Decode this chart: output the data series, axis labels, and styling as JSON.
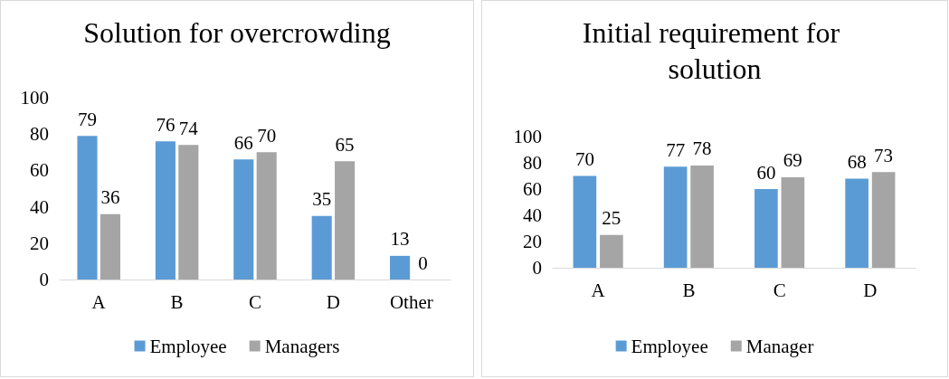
{
  "chart_data": [
    {
      "type": "bar",
      "title": "Solution for overcrowding",
      "categories": [
        "A",
        "B",
        "C",
        "D",
        "Other"
      ],
      "series": [
        {
          "name": "Employee",
          "color": "#5b9bd5",
          "values": [
            79,
            76,
            66,
            35,
            13
          ]
        },
        {
          "name": "Managers",
          "color": "#a5a5a5",
          "values": [
            36,
            74,
            70,
            65,
            0
          ]
        }
      ],
      "ylim": [
        0,
        100
      ],
      "yticks": [
        0,
        20,
        40,
        60,
        80,
        100
      ],
      "grid": false,
      "legend": "bottom",
      "data_labels": true
    },
    {
      "type": "bar",
      "title": "Initial requirement for solution",
      "categories": [
        "A",
        "B",
        "C",
        "D"
      ],
      "series": [
        {
          "name": "Employee",
          "color": "#5b9bd5",
          "values": [
            70,
            77,
            60,
            68
          ]
        },
        {
          "name": "Manager",
          "color": "#a5a5a5",
          "values": [
            25,
            78,
            69,
            73
          ]
        }
      ],
      "ylim": [
        0,
        100
      ],
      "yticks": [
        0,
        20,
        40,
        60,
        80,
        100
      ],
      "grid": false,
      "legend": "bottom",
      "data_labels": true
    }
  ]
}
